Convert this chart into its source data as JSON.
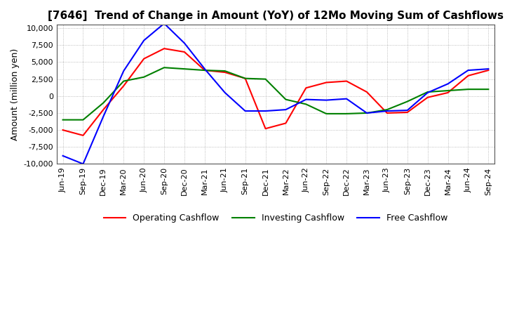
{
  "title": "[7646]  Trend of Change in Amount (YoY) of 12Mo Moving Sum of Cashflows",
  "ylabel": "Amount (million yen)",
  "ylim": [
    -10000,
    10500
  ],
  "yticks": [
    -10000,
    -7500,
    -5000,
    -2500,
    0,
    2500,
    5000,
    7500,
    10000
  ],
  "background_color": "#ffffff",
  "grid_color": "#aaaaaa",
  "x_labels": [
    "Jun-19",
    "Sep-19",
    "Dec-19",
    "Mar-20",
    "Jun-20",
    "Sep-20",
    "Dec-20",
    "Mar-21",
    "Jun-21",
    "Sep-21",
    "Dec-21",
    "Mar-22",
    "Jun-22",
    "Sep-22",
    "Dec-22",
    "Mar-23",
    "Jun-23",
    "Sep-23",
    "Dec-23",
    "Mar-24",
    "Jun-24",
    "Sep-24"
  ],
  "operating_cashflow": [
    -5000,
    -5800,
    -2000,
    1500,
    5500,
    7000,
    6500,
    3800,
    3500,
    2600,
    -4800,
    -4000,
    1200,
    2000,
    2200,
    600,
    -2500,
    -2400,
    -200,
    500,
    3000,
    3800
  ],
  "investing_cashflow": [
    -3500,
    -3500,
    -1000,
    2200,
    2800,
    4200,
    4000,
    3800,
    3700,
    2600,
    2500,
    -500,
    -1200,
    -2600,
    -2600,
    -2500,
    -2000,
    -800,
    600,
    800,
    1000,
    1000
  ],
  "free_cashflow": [
    -8800,
    -10000,
    -3000,
    3700,
    8200,
    10700,
    7800,
    4000,
    500,
    -2200,
    -2200,
    -2000,
    -500,
    -600,
    -400,
    -2500,
    -2200,
    -2100,
    500,
    1800,
    3800,
    4000
  ],
  "operating_color": "#ff0000",
  "investing_color": "#008000",
  "free_color": "#0000ff",
  "title_fontsize": 11,
  "tick_fontsize": 8,
  "label_fontsize": 9,
  "line_width": 1.5
}
